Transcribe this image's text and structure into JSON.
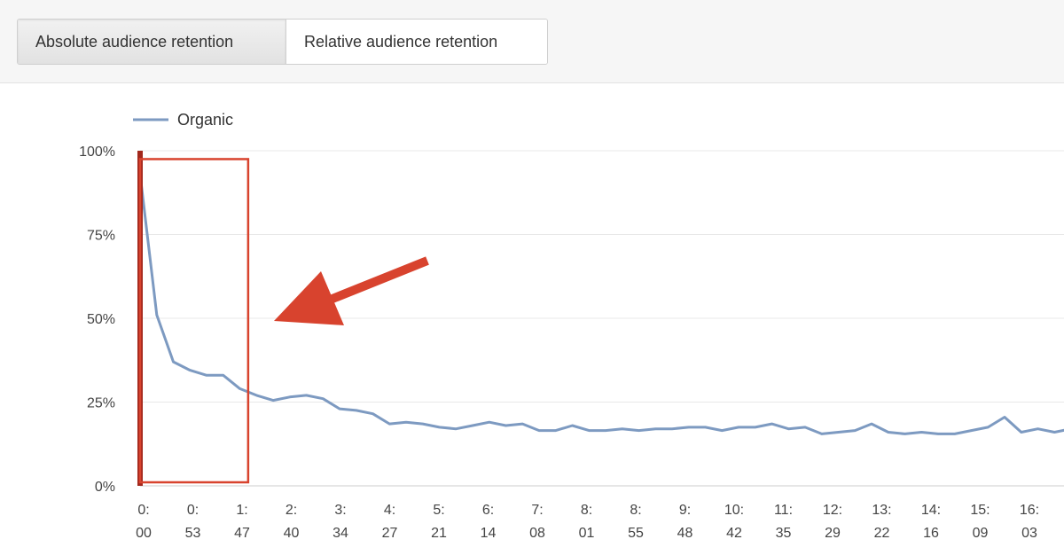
{
  "tabs": [
    {
      "label": "Absolute audience retention",
      "active": true
    },
    {
      "label": "Relative audience retention",
      "active": false
    }
  ],
  "colors": {
    "series": "#7d9ac1",
    "highlight": "#d8432e",
    "playhead": "#a2281c",
    "grid": "#e8e8e8"
  },
  "chart_data": {
    "type": "line",
    "title": "",
    "xlabel": "",
    "ylabel": "",
    "legend": "top-left",
    "grid": true,
    "ylim": [
      0,
      100
    ],
    "yticks": [
      "0%",
      "25%",
      "50%",
      "75%",
      "100%"
    ],
    "xticks": [
      [
        "0:",
        "00"
      ],
      [
        "0:",
        "53"
      ],
      [
        "1:",
        "47"
      ],
      [
        "2:",
        "40"
      ],
      [
        "3:",
        "34"
      ],
      [
        "4:",
        "27"
      ],
      [
        "5:",
        "21"
      ],
      [
        "6:",
        "14"
      ],
      [
        "7:",
        "08"
      ],
      [
        "8:",
        "01"
      ],
      [
        "8:",
        "55"
      ],
      [
        "9:",
        "48"
      ],
      [
        "10:",
        "42"
      ],
      [
        "11:",
        "35"
      ],
      [
        "12:",
        "29"
      ],
      [
        "13:",
        "22"
      ],
      [
        "14:",
        "16"
      ],
      [
        "15:",
        "09"
      ],
      [
        "16:",
        "03"
      ]
    ],
    "series": [
      {
        "name": "Organic",
        "values": [
          93,
          51,
          37,
          34.5,
          33,
          33,
          29,
          27,
          25.5,
          26.5,
          27,
          26,
          23,
          22.5,
          21.5,
          18.5,
          19,
          18.5,
          17.5,
          17,
          18,
          19,
          18,
          18.5,
          16.5,
          16.5,
          18,
          16.5,
          16.5,
          17,
          16.5,
          17,
          17,
          17.5,
          17.5,
          16.5,
          17.5,
          17.5,
          18.5,
          17,
          17.5,
          15.5,
          16,
          16.5,
          18.5,
          16,
          15.5,
          16,
          15.5,
          15.5,
          16.5,
          17.5,
          20.5,
          16,
          17,
          16,
          17
        ]
      }
    ],
    "annotations": [
      {
        "type": "box",
        "x_range": [
          0,
          6.5
        ],
        "y_range": [
          0,
          97.5
        ]
      },
      {
        "type": "arrow",
        "pointing": "left"
      }
    ]
  }
}
